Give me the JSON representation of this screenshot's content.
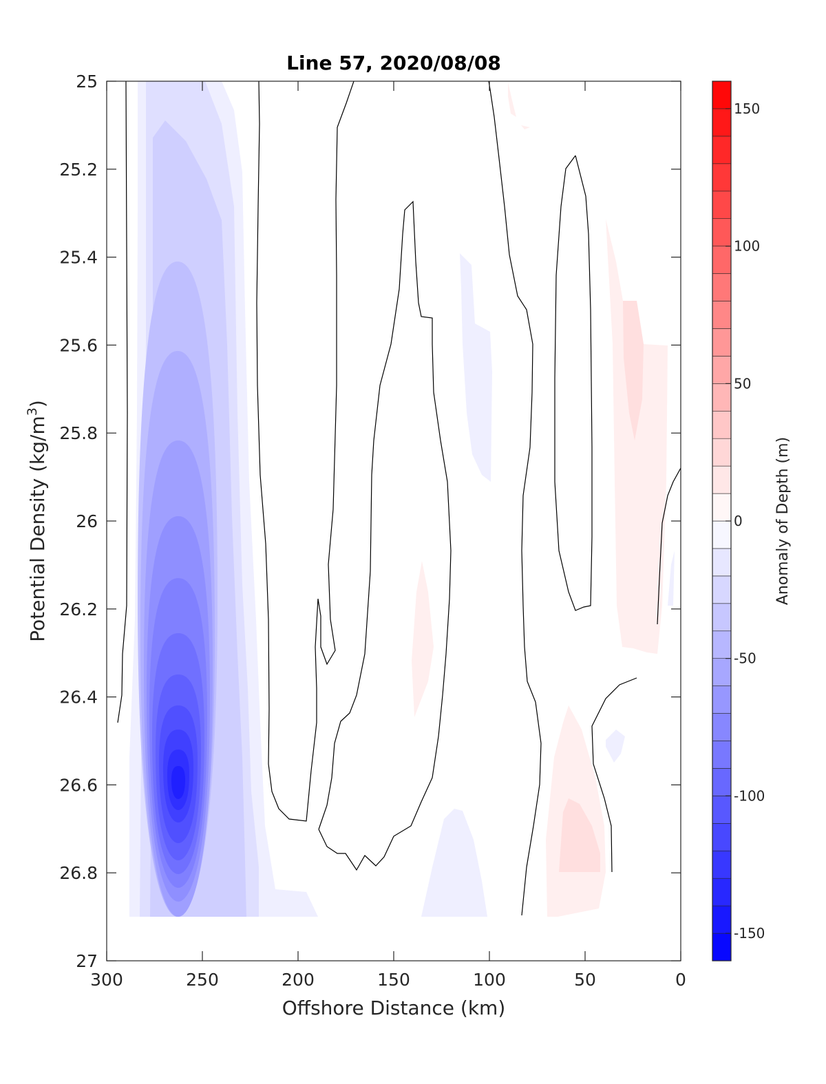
{
  "chart_data": {
    "type": "contour",
    "title": "Line 57, 2020/08/08",
    "xlabel": "Offshore Distance (km)",
    "ylabel": "Potential Density (kg/m",
    "ylabel_superscript": "3",
    "ylabel_suffix": ")",
    "x_ticks": [
      300,
      250,
      200,
      150,
      100,
      50,
      0
    ],
    "x_reversed": true,
    "xlim": [
      0,
      300
    ],
    "y_ticks": [
      25,
      25.2,
      25.4,
      25.6,
      25.8,
      26,
      26.2,
      26.4,
      26.6,
      26.8,
      27
    ],
    "y_tick_labels": [
      "25",
      "25.2",
      "25.4",
      "25.6",
      "25.8",
      "26",
      "26.2",
      "26.4",
      "26.6",
      "26.8",
      "27"
    ],
    "y_reversed": true,
    "ylim": [
      25,
      27
    ],
    "colorbar": {
      "label": "Anomaly of Depth (m)",
      "range": [
        -160,
        160
      ],
      "step": 10,
      "ticks": [
        150,
        100,
        50,
        0,
        -50,
        -100,
        -150
      ],
      "colormap": "blue-white-red",
      "low_color": "#0000ff",
      "mid_color": "#ffffff",
      "high_color": "#ff0000"
    },
    "grid": false,
    "features": [
      {
        "kind": "negative-anomaly",
        "center_x": 258,
        "center_y": 26.6,
        "min_value": -150,
        "x_extent": [
          285,
          220
        ],
        "y_extent": [
          25.0,
          26.9
        ]
      },
      {
        "kind": "negative-anomaly",
        "center_x": 115,
        "center_y": 26.8,
        "min_value": -10
      },
      {
        "kind": "negative-anomaly",
        "center_x": 110,
        "center_y": 25.7,
        "min_value": -10
      },
      {
        "kind": "positive-anomaly",
        "center_x": 55,
        "center_y": 26.7,
        "max_value": 20
      },
      {
        "kind": "positive-anomaly",
        "center_x": 28,
        "center_y": 25.8,
        "max_value": 20
      },
      {
        "kind": "positive-anomaly",
        "center_x": 130,
        "center_y": 26.3,
        "max_value": 10
      }
    ]
  }
}
